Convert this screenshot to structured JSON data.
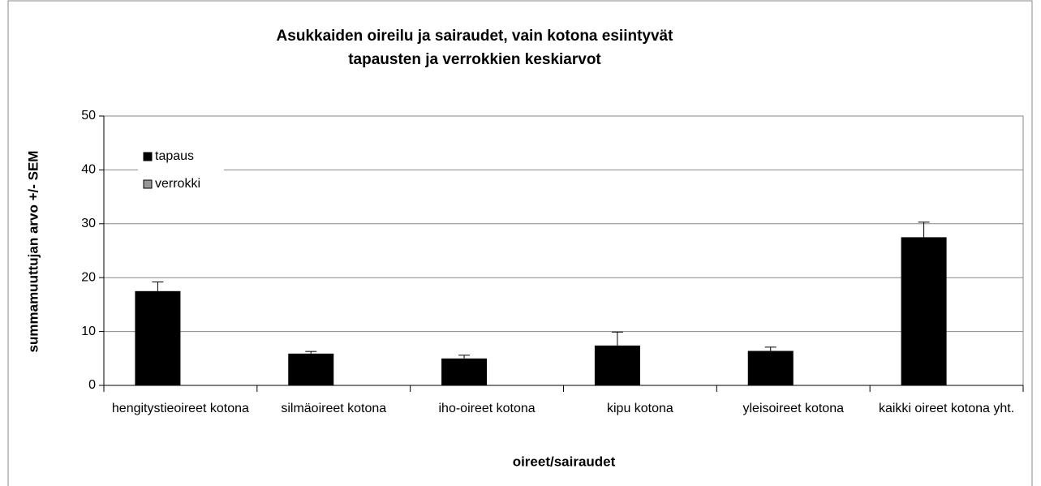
{
  "chart_data": {
    "type": "bar",
    "title": [
      "Asukkaiden oireilu ja sairaudet, vain kotona esiintyvät",
      "tapausten ja verrokkien keskiarvot"
    ],
    "x_label": "oireet/sairaudet",
    "y_label": "summamuuttujan arvo +/- SEM",
    "categories": [
      "hengitystieoireet kotona",
      "silmäoireet kotona",
      "iho-oireet kotona",
      "kipu kotona",
      "yleisoireet kotona",
      "kaikki oireet kotona yht."
    ],
    "series": [
      {
        "name": "tapaus",
        "color": "#000000",
        "values": [
          17.5,
          5.9,
          5.0,
          7.4,
          6.4,
          27.5
        ],
        "errors": [
          1.7,
          0.4,
          0.6,
          2.5,
          0.7,
          2.8
        ]
      },
      {
        "name": "verrokki",
        "color": "#999999",
        "values": [
          null,
          null,
          null,
          null,
          null,
          null
        ]
      }
    ],
    "ylim": [
      0,
      50
    ],
    "yticks": [
      0,
      10,
      20,
      30,
      40,
      50
    ],
    "grid": true,
    "legend": "top-left"
  }
}
